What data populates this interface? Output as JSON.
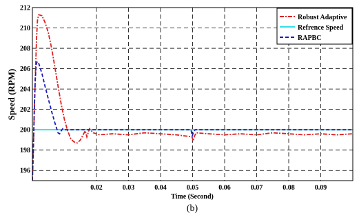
{
  "chart_data": {
    "type": "line",
    "title": "",
    "xlabel": "Time (Second)",
    "ylabel": "Speed (RPM)",
    "caption": "(b)",
    "xlim": [
      0,
      0.1
    ],
    "ylim": [
      195,
      212
    ],
    "grid": true,
    "legend_position": "top-right",
    "x_ticks": [
      0.02,
      0.03,
      0.04,
      0.05,
      0.06,
      0.07,
      0.08,
      0.09
    ],
    "x_tick_labels": [
      "0.02",
      "0.03",
      "0.04",
      "0.05",
      "0.06",
      "0.07",
      "0.08",
      "0.09"
    ],
    "y_ticks": [
      196,
      198,
      200,
      202,
      204,
      206,
      208,
      210,
      212
    ],
    "y_tick_labels": [
      "196",
      "198",
      "200",
      "202",
      "204",
      "206",
      "208",
      "210",
      "212"
    ],
    "series": [
      {
        "name": "Robust Adaptive",
        "color": "#e02020",
        "style": "dashdot",
        "x": [
          0.0,
          0.0003,
          0.0006,
          0.001,
          0.0013,
          0.0016,
          0.002,
          0.003,
          0.004,
          0.005,
          0.006,
          0.007,
          0.008,
          0.009,
          0.01,
          0.011,
          0.012,
          0.013,
          0.014,
          0.015,
          0.016,
          0.0165,
          0.017,
          0.0178,
          0.019,
          0.021,
          0.025,
          0.03,
          0.035,
          0.04,
          0.045,
          0.0498,
          0.0502,
          0.0506,
          0.0512,
          0.055,
          0.06,
          0.065,
          0.07,
          0.075,
          0.08,
          0.085,
          0.09,
          0.095,
          0.1
        ],
        "y": [
          195,
          198,
          202,
          206,
          209,
          210.8,
          211.3,
          211.2,
          210.5,
          209.5,
          208.0,
          206.2,
          204.3,
          202.5,
          201.0,
          199.9,
          199.1,
          198.8,
          198.7,
          199.0,
          199.6,
          199.9,
          199.3,
          200.1,
          199.7,
          199.5,
          199.6,
          199.5,
          199.7,
          199.6,
          199.5,
          199.3,
          198.9,
          199.4,
          199.7,
          199.6,
          199.5,
          199.6,
          199.5,
          199.7,
          199.6,
          199.5,
          199.6,
          199.5,
          199.6
        ]
      },
      {
        "name": "Refrence Speed",
        "color": "#30e0e8",
        "style": "solid",
        "x": [
          0.0,
          0.1
        ],
        "y": [
          200,
          200
        ]
      },
      {
        "name": "RAPBC",
        "color": "#1a1ab8",
        "style": "dashed",
        "x": [
          0.0,
          0.0003,
          0.0006,
          0.0009,
          0.0012,
          0.0015,
          0.002,
          0.003,
          0.004,
          0.005,
          0.006,
          0.007,
          0.008,
          0.0085,
          0.009,
          0.0095,
          0.01,
          0.012,
          0.015,
          0.02,
          0.03,
          0.04,
          0.0495,
          0.0499,
          0.0503,
          0.0508,
          0.06,
          0.07,
          0.08,
          0.09,
          0.1
        ],
        "y": [
          195,
          198,
          202,
          205,
          206.4,
          206.7,
          206.5,
          205.5,
          204.2,
          203.0,
          201.8,
          200.7,
          199.7,
          199.6,
          199.9,
          200.1,
          200.0,
          200.0,
          200.0,
          200.0,
          200.0,
          200.0,
          200.0,
          199.4,
          199.8,
          200.0,
          200.0,
          200.0,
          200.0,
          200.0,
          200.0
        ]
      }
    ]
  }
}
